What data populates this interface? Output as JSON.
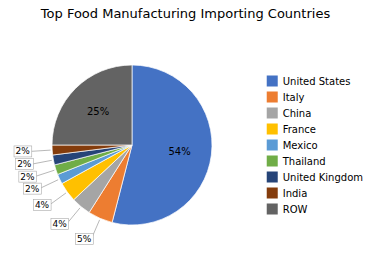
{
  "chart_data": {
    "type": "pie",
    "title": "Top Food Manufacturing Importing Countries",
    "categories": [
      "United States",
      "Italy",
      "China",
      "France",
      "Mexico",
      "Thailand",
      "United Kingdom",
      "India",
      "ROW"
    ],
    "values": [
      54,
      5,
      4,
      4,
      2,
      2,
      2,
      2,
      25
    ],
    "value_labels": [
      "54%",
      "5%",
      "4%",
      "4%",
      "2%",
      "2%",
      "2%",
      "2%",
      "25%"
    ],
    "colors": [
      "#4472C4",
      "#ED7D31",
      "#A5A5A5",
      "#FFC000",
      "#5B9BD5",
      "#70AD47",
      "#264478",
      "#843C0C",
      "#636363"
    ],
    "data_labels": true,
    "legend": "right"
  }
}
